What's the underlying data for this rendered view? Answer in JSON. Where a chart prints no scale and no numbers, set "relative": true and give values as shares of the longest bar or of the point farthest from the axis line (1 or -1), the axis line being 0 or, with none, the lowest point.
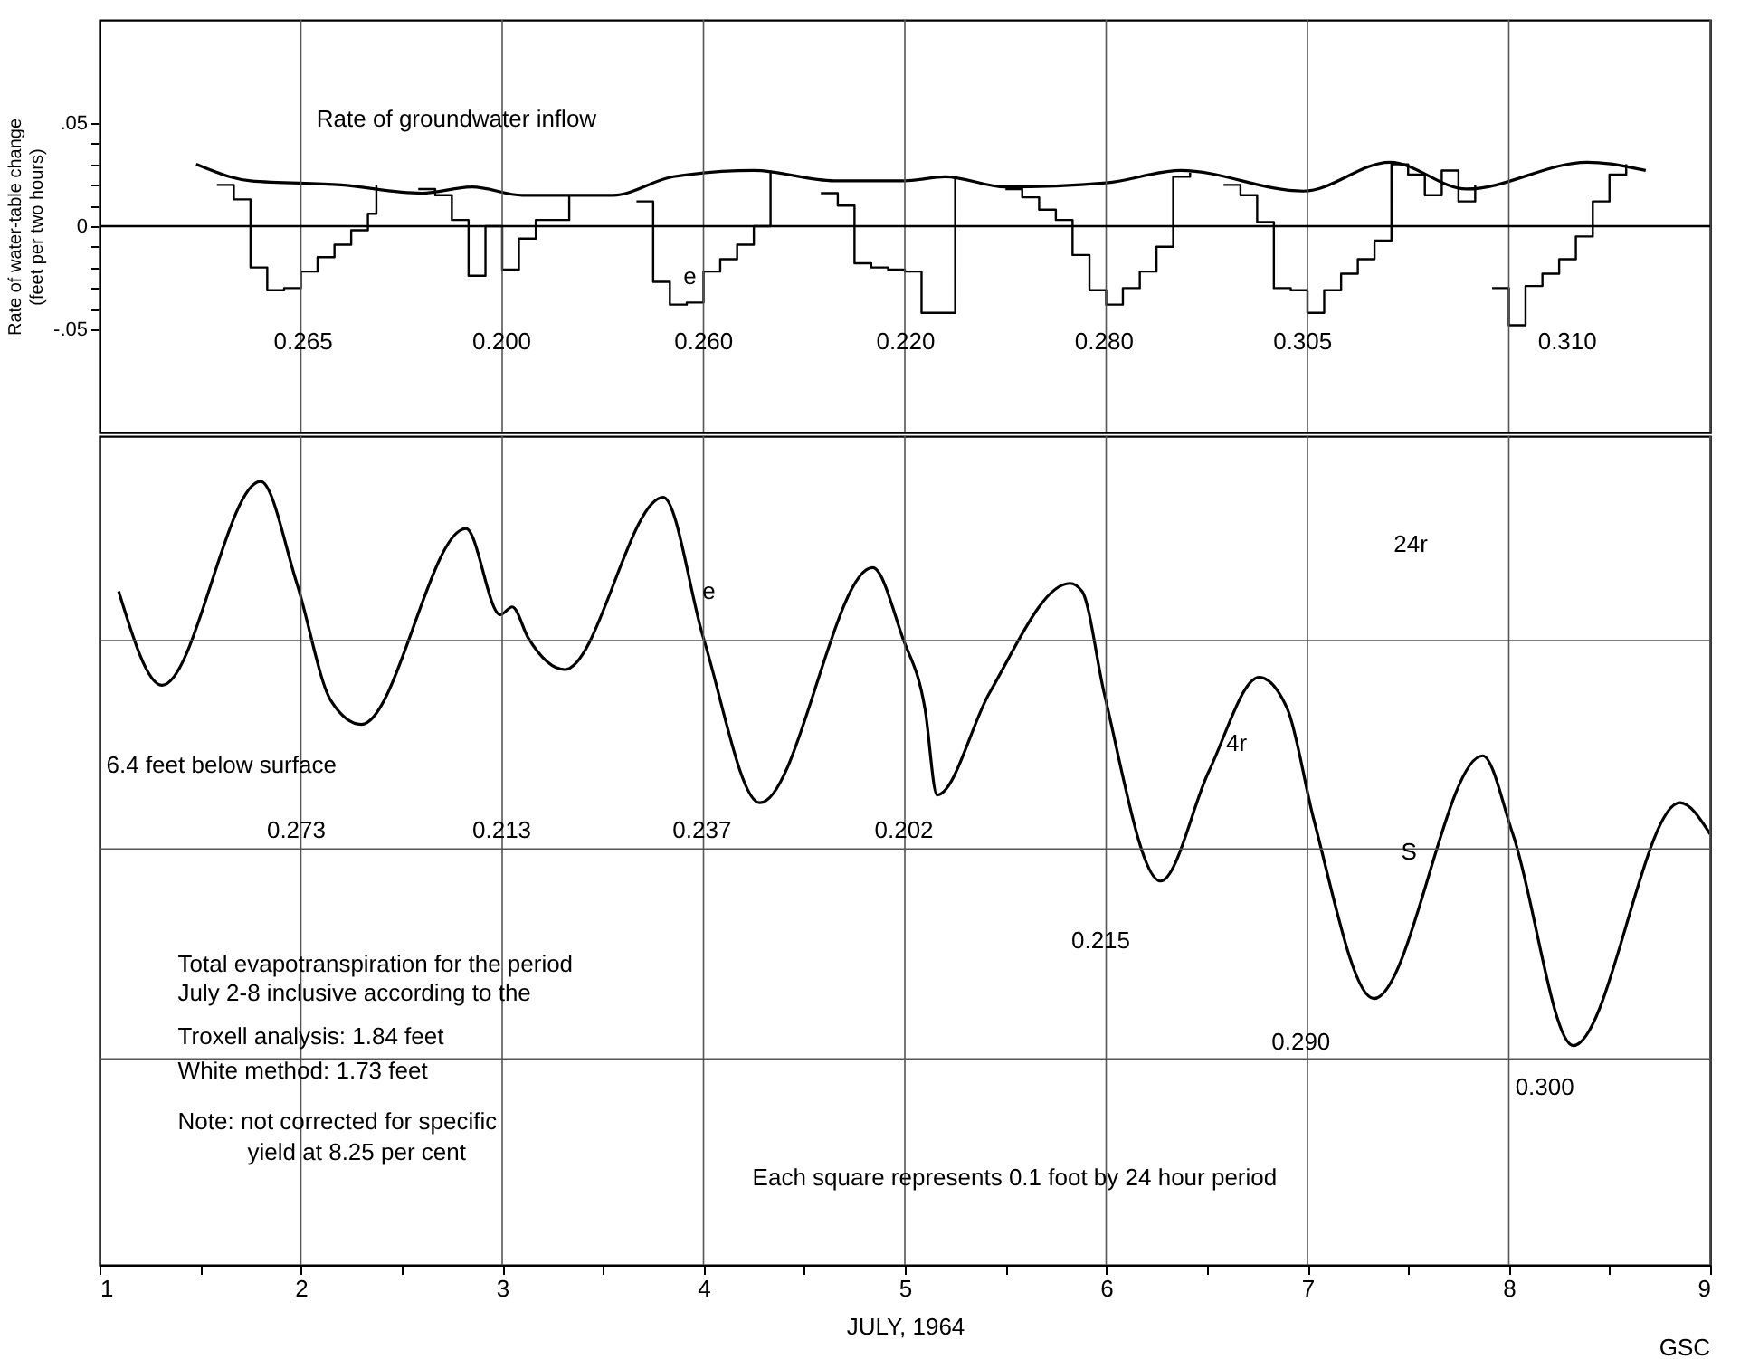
{
  "chart_data": [
    {
      "type": "step",
      "ylabel": "Rate of water-table change (feet per two hours)",
      "xlim": [
        1,
        9
      ],
      "xticks": [
        1,
        2,
        3,
        4,
        5,
        6,
        7,
        8,
        9
      ],
      "ylim": [
        -0.1,
        0.1
      ],
      "yticks": [
        {
          "value": -0.05,
          "label": "-.05"
        },
        {
          "value": -0.04,
          "label": null
        },
        {
          "value": -0.03,
          "label": null
        },
        {
          "value": -0.02,
          "label": null
        },
        {
          "value": -0.01,
          "label": null
        },
        0,
        {
          "value": 0.01,
          "label": null
        },
        {
          "value": 0.02,
          "label": null
        },
        {
          "value": 0.03,
          "label": null
        },
        {
          "value": 0.04,
          "label": null
        },
        {
          "value": 0.05,
          "label": ".05"
        }
      ],
      "grid": "x",
      "tick_labels": "y",
      "ref_lines": [
        {
          "axis": "y",
          "value": 0
        }
      ],
      "series": [
        {
          "type": "step",
          "color": "#000000",
          "x": [
            1.583,
            1.667,
            1.75,
            1.833,
            1.917,
            2.0,
            2.083,
            2.167,
            2.25,
            2.333,
            2.375,
            2.45,
            2.583,
            2.667,
            2.75,
            2.833,
            2.917,
            3.0,
            3.083,
            3.167,
            3.25,
            3.333,
            3.45,
            3.667,
            3.75,
            3.833,
            3.917,
            4.0,
            4.083,
            4.167,
            4.25,
            4.333,
            4.45,
            4.583,
            4.667,
            4.75,
            4.833,
            4.917,
            5.0,
            5.083,
            5.167,
            5.25,
            5.4,
            5.5,
            5.583,
            5.667,
            5.75,
            5.833,
            5.917,
            6.0,
            6.083,
            6.167,
            6.25,
            6.333,
            6.417,
            6.5,
            6.583,
            6.667,
            6.75,
            6.833,
            6.917,
            7.0,
            7.083,
            7.167,
            7.25,
            7.333,
            7.417,
            7.5,
            7.583,
            7.667,
            7.75,
            7.833,
            7.875,
            7.917,
            8.0,
            8.083,
            8.167,
            8.25,
            8.333,
            8.417,
            8.5,
            8.583
          ],
          "values": [
            0.02,
            0.013,
            -0.02,
            -0.031,
            -0.03,
            -0.022,
            -0.015,
            -0.009,
            -0.002,
            0.006,
            0.02,
            null,
            0.018,
            0.015,
            0.003,
            -0.024,
            0,
            -0.021,
            -0.006,
            0.003,
            0.003,
            0.015,
            null,
            0.012,
            -0.027,
            -0.038,
            -0.037,
            -0.022,
            -0.016,
            -0.009,
            0,
            0.027,
            null,
            0.016,
            0.01,
            -0.018,
            -0.02,
            -0.021,
            -0.022,
            -0.042,
            -0.042,
            0.023,
            null,
            0.018,
            0.014,
            0.008,
            0.003,
            -0.014,
            -0.031,
            -0.038,
            -0.03,
            -0.022,
            -0.01,
            0.024,
            0.026,
            null,
            0.02,
            0.015,
            0.002,
            -0.03,
            -0.031,
            -0.042,
            -0.031,
            -0.023,
            -0.016,
            -0.007,
            0.03,
            0.025,
            0.015,
            0.027,
            0.012,
            0.02,
            null,
            -0.03,
            -0.048,
            -0.029,
            -0.023,
            -0.016,
            -0.005,
            0.012,
            0.025,
            0.03
          ]
        },
        {
          "type": "line",
          "color": "#000000",
          "x": [
            1.48,
            1.75,
            2.2,
            2.6,
            2.85,
            3.1,
            3.55,
            3.85,
            4.25,
            4.65,
            5.0,
            5.2,
            5.5,
            6.0,
            6.37,
            6.98,
            7.41,
            7.79,
            8.39,
            8.68
          ],
          "values": [
            0.03,
            0.022,
            0.02,
            0.016,
            0.019,
            0.015,
            0.015,
            0.024,
            0.027,
            0.022,
            0.022,
            0.024,
            0.019,
            0.021,
            0.027,
            0.017,
            0.031,
            0.018,
            0.031,
            0.027
          ]
        }
      ],
      "annotations": [
        "Rate of groundwater inflow",
        "0.265",
        "0.200",
        "0.260",
        "0.220",
        "0.280",
        "0.305",
        "0.310",
        "e"
      ]
    },
    {
      "type": "line",
      "xlabel": "JULY, 1964",
      "relative": true,
      "xlim": [
        1,
        9
      ],
      "xticks": [
        1,
        {
          "value": 1.5,
          "label": null
        },
        2,
        {
          "value": 2.5,
          "label": null
        },
        3,
        {
          "value": 3.5,
          "label": null
        },
        4,
        {
          "value": 4.5,
          "label": null
        },
        5,
        {
          "value": 5.5,
          "label": null
        },
        6,
        {
          "value": 6.5,
          "label": null
        },
        7,
        {
          "value": 7.5,
          "label": null
        },
        8,
        {
          "value": 8.5,
          "label": null
        },
        9
      ],
      "grid": true,
      "tick_labels": "x",
      "series": [
        {
          "color": "#000000",
          "x": [
            1.095,
            1.31,
            1.8,
            1.98,
            2.15,
            2.3,
            2.82,
            2.99,
            3.05,
            3.13,
            3.31,
            3.8,
            4.0,
            4.28,
            4.84,
            4.99,
            5.1,
            5.16,
            5.42,
            5.82,
            5.88,
            5.99,
            6.27,
            6.51,
            6.76,
            6.9,
            7.03,
            7.33,
            7.87,
            8.02,
            8.32,
            8.85,
            9.0
          ],
          "values": [
            0.86,
            0.74,
            1.0,
            0.87,
            0.72,
            0.69,
            0.94,
            0.83,
            0.84,
            0.8,
            0.76,
            0.98,
            0.8,
            0.59,
            0.89,
            0.8,
            0.71,
            0.6,
            0.73,
            0.87,
            0.86,
            0.73,
            0.49,
            0.63,
            0.75,
            0.71,
            0.57,
            0.34,
            0.65,
            0.55,
            0.28,
            0.59,
            0.55
          ]
        }
      ],
      "annotations": [
        "6.4 feet below surface",
        "0.273",
        "0.213",
        "0.237",
        "0.202",
        "0.215",
        "0.290",
        "0.300",
        "e",
        "24r",
        "4r",
        "S",
        "Total evapotranspiration for the period",
        "July 2-8 inclusive according to the",
        "Troxell analysis:  1.84 feet",
        "White method:  1.73 feet",
        "Note: not corrected for specific",
        "yield at 8.25 per cent",
        "Each square represents 0.1 foot by 24 hour period",
        "GSC"
      ]
    }
  ]
}
